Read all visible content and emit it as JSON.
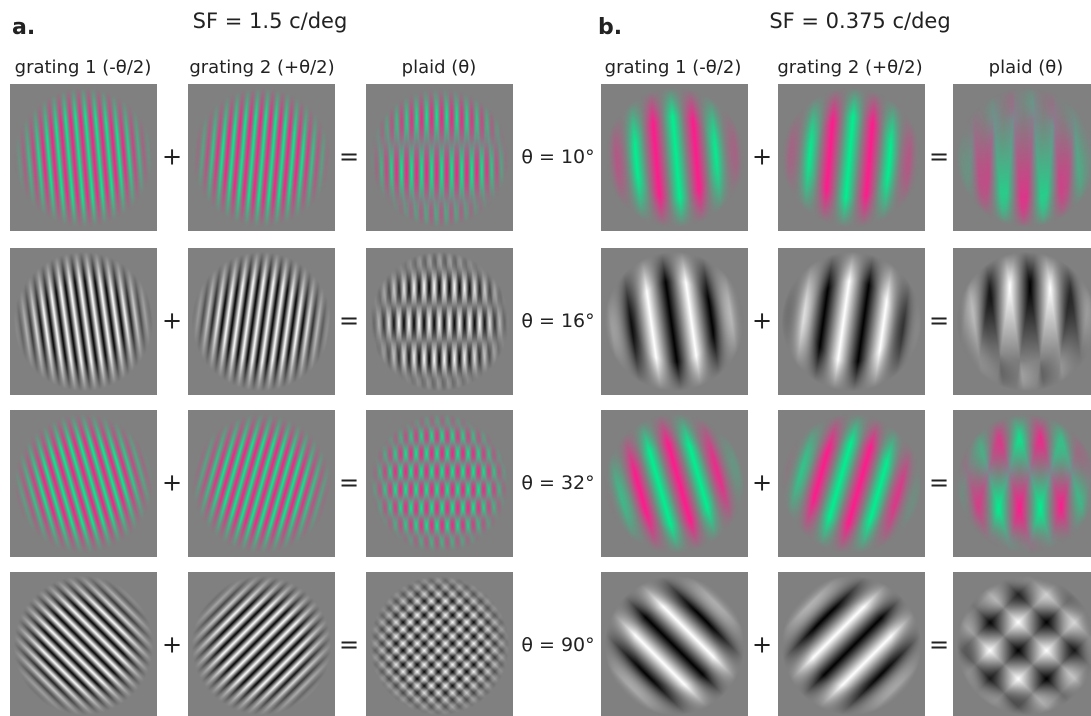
{
  "panels": [
    {
      "label": "a.",
      "title": "SF = 1.5 c/deg",
      "sf": 1.5,
      "columns": [
        "grating 1 (-θ/2)",
        "grating 2 (+θ/2)",
        "plaid (θ)"
      ]
    },
    {
      "label": "b.",
      "title": "SF = 0.375 c/deg",
      "sf": 0.375,
      "columns": [
        "grating 1 (-θ/2)",
        "grating 2 (+θ/2)",
        "plaid (θ)"
      ]
    }
  ],
  "rows": [
    {
      "label": "θ = 10°",
      "theta": 10,
      "colored": true
    },
    {
      "label": "θ = 16°",
      "theta": 16,
      "colored": false
    },
    {
      "label": "θ = 32°",
      "theta": 32,
      "colored": true
    },
    {
      "label": "θ = 90°",
      "theta": 90,
      "colored": false
    }
  ],
  "operators": {
    "plus": "+",
    "equals": "="
  },
  "colors": {
    "colored": [
      "#ff1a8c",
      "#00f090"
    ],
    "gray": [
      "#ffffff",
      "#000000"
    ],
    "background": "#808080"
  }
}
